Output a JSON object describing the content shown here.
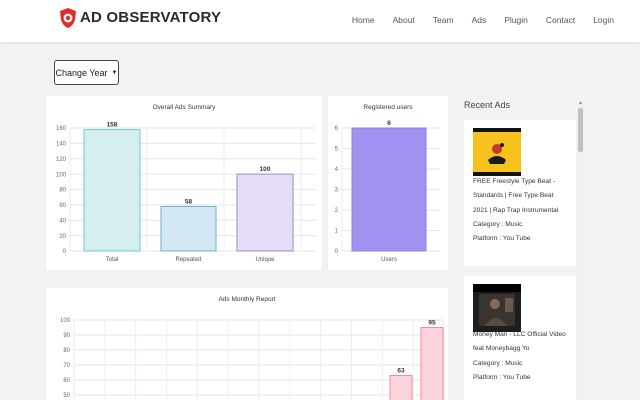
{
  "brand": {
    "name": "AD OBSERVATORY",
    "logo_icon": "shield-logo-icon",
    "logo_color": "#e22b2b"
  },
  "nav": {
    "items": [
      "Home",
      "About",
      "Team",
      "Ads",
      "Plugin",
      "Contact",
      "Login"
    ]
  },
  "controls": {
    "change_year_label": "Change Year",
    "caret_icon": "caret-down-icon"
  },
  "recent_ads": {
    "title": "Recent Ads",
    "items": [
      {
        "thumbnail_icon": "video-thumbnail-icon",
        "title_lines": [
          "FREE Freestyle Type Beat -",
          "Standards | Free Type Beat",
          "2021 | Rap Trap Instrumental"
        ],
        "category_line": "Category : Music",
        "platform_line": "Platform : You Tube"
      },
      {
        "thumbnail_icon": "video-thumbnail-icon",
        "title_lines": [
          "Money Man - LLC Official Video",
          "feat Moneybagg Yo"
        ],
        "category_line": "Category : Music",
        "platform_line": "Platform : You Tube"
      }
    ]
  },
  "chart_data": [
    {
      "type": "bar",
      "title": "Overall Ads Summary",
      "categories": [
        "Total",
        "Repeated",
        "Unique"
      ],
      "values": [
        158,
        58,
        100
      ],
      "colors": [
        "#d6eeef",
        "#d2e8f2",
        "#e7ddf8"
      ],
      "borders": [
        "#66d1c3",
        "#6cb0cc",
        "#9986d6"
      ],
      "ylim": [
        0,
        160
      ],
      "yticks": [
        0,
        20,
        40,
        60,
        80,
        100,
        120,
        140,
        160
      ],
      "grid": true,
      "data_labels": true
    },
    {
      "type": "bar",
      "title": "Registered users",
      "categories": [
        "Users"
      ],
      "values": [
        6
      ],
      "colors": [
        "#9f93ef"
      ],
      "borders": [
        "#8c7ee6"
      ],
      "ylim": [
        0,
        6
      ],
      "yticks": [
        0,
        1,
        2,
        3,
        4,
        5,
        6
      ],
      "grid": true,
      "data_labels": true
    },
    {
      "type": "bar",
      "title": "Ads Monthly Report",
      "visible_values": [
        63,
        95
      ],
      "colors": [
        "#fbd3dc",
        "#fbd3dc"
      ],
      "borders": [
        "#f28aa3",
        "#f28aa3"
      ],
      "ylim": [
        0,
        100
      ],
      "yticks": [
        40,
        50,
        60,
        70,
        80,
        90,
        100
      ],
      "grid": true,
      "data_labels": true
    }
  ]
}
